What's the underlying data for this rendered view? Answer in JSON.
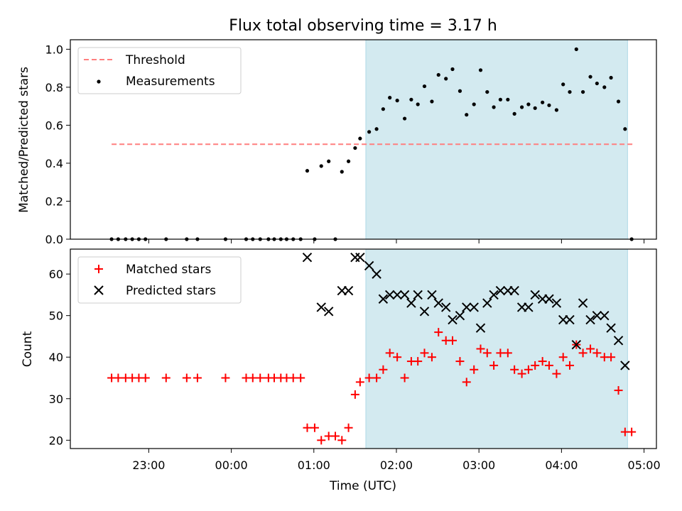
{
  "figure": {
    "title": "Flux total observing time = 3.17 h",
    "xlabel": "Time (UTC)",
    "x_ticks": [
      "23:00",
      "00:00",
      "01:00",
      "02:00",
      "03:00",
      "04:00",
      "05:00"
    ]
  },
  "chart_data": [
    {
      "type": "scatter",
      "ylabel": "Matched/Predicted stars",
      "ylim": [
        0,
        1.05
      ],
      "y_ticks": [
        "0.0",
        "0.2",
        "0.4",
        "0.6",
        "0.8",
        "1.0"
      ],
      "xlim_hours": [
        22.05,
        29.15
      ],
      "shaded_span_hours": [
        25.63,
        28.8
      ],
      "shaded_color": "#d3eaf0",
      "legend": {
        "position": "top-left",
        "entries": [
          "Threshold",
          "Measurements"
        ]
      },
      "series": [
        {
          "name": "Threshold",
          "kind": "dashed-line",
          "color": "#ff7f7f",
          "x_hours": [
            22.55,
            28.88
          ],
          "y": [
            0.5,
            0.5
          ]
        },
        {
          "name": "Measurements",
          "kind": "points",
          "color": "#000000",
          "x_hours": [
            22.55,
            22.63,
            22.72,
            22.8,
            22.88,
            22.96,
            23.21,
            23.46,
            23.59,
            23.93,
            24.18,
            24.26,
            24.35,
            24.45,
            24.52,
            24.6,
            24.67,
            24.75,
            24.84,
            24.92,
            25.01,
            25.09,
            25.18,
            25.26,
            25.34,
            25.42,
            25.5,
            25.56,
            25.67,
            25.76,
            25.84,
            25.92,
            26.01,
            26.1,
            26.18,
            26.26,
            26.34,
            26.43,
            26.51,
            26.6,
            26.68,
            26.77,
            26.85,
            26.94,
            27.02,
            27.1,
            27.18,
            27.26,
            27.35,
            27.43,
            27.52,
            27.6,
            27.68,
            27.77,
            27.85,
            27.94,
            28.02,
            28.1,
            28.18,
            28.26,
            28.35,
            28.43,
            28.52,
            28.6,
            28.69,
            28.77,
            28.85
          ],
          "y": [
            0,
            0,
            0,
            0,
            0,
            0,
            0,
            0,
            0,
            0,
            0,
            0,
            0,
            0,
            0,
            0,
            0,
            0,
            0,
            0.36,
            0,
            0.385,
            0.41,
            0,
            0.355,
            0.41,
            0.48,
            0.53,
            0.565,
            0.58,
            0.685,
            0.745,
            0.73,
            0.635,
            0.735,
            0.71,
            0.805,
            0.725,
            0.865,
            0.845,
            0.895,
            0.78,
            0.655,
            0.71,
            0.89,
            0.775,
            0.695,
            0.735,
            0.735,
            0.66,
            0.695,
            0.71,
            0.69,
            0.72,
            0.705,
            0.68,
            0.815,
            0.775,
            1.0,
            0.775,
            0.855,
            0.82,
            0.8,
            0.85,
            0.725,
            0.58,
            0
          ]
        }
      ]
    },
    {
      "type": "scatter",
      "ylabel": "Count",
      "ylim": [
        18,
        66
      ],
      "y_ticks": [
        "20",
        "30",
        "40",
        "50",
        "60"
      ],
      "xlim_hours": [
        22.05,
        29.15
      ],
      "shaded_span_hours": [
        25.63,
        28.8
      ],
      "shaded_color": "#d3eaf0",
      "legend": {
        "position": "top-left",
        "entries": [
          "Matched stars",
          "Predicted stars"
        ]
      },
      "series": [
        {
          "name": "Matched stars",
          "marker": "+",
          "color": "#ff0000",
          "x_hours": [
            22.55,
            22.63,
            22.72,
            22.8,
            22.88,
            22.96,
            23.21,
            23.46,
            23.59,
            23.93,
            24.18,
            24.26,
            24.35,
            24.45,
            24.52,
            24.6,
            24.67,
            24.75,
            24.84,
            24.92,
            25.01,
            25.09,
            25.18,
            25.26,
            25.34,
            25.42,
            25.5,
            25.56,
            25.67,
            25.76,
            25.84,
            25.92,
            26.01,
            26.1,
            26.18,
            26.26,
            26.34,
            26.43,
            26.51,
            26.6,
            26.68,
            26.77,
            26.85,
            26.94,
            27.02,
            27.1,
            27.18,
            27.26,
            27.35,
            27.43,
            27.52,
            27.6,
            27.68,
            27.77,
            27.85,
            27.94,
            28.02,
            28.1,
            28.18,
            28.26,
            28.35,
            28.43,
            28.52,
            28.6,
            28.69,
            28.77,
            28.85
          ],
          "y": [
            35,
            35,
            35,
            35,
            35,
            35,
            35,
            35,
            35,
            35,
            35,
            35,
            35,
            35,
            35,
            35,
            35,
            35,
            35,
            23,
            23,
            20,
            21,
            21,
            20,
            23,
            31,
            34,
            35,
            35,
            37,
            41,
            40,
            35,
            39,
            39,
            41,
            40,
            46,
            44,
            44,
            39,
            34,
            37,
            42,
            41,
            38,
            41,
            41,
            37,
            36,
            37,
            38,
            39,
            38,
            36,
            40,
            38,
            43,
            41,
            42,
            41,
            40,
            40,
            32,
            22,
            22
          ]
        },
        {
          "name": "Predicted stars",
          "marker": "x",
          "color": "#000000",
          "x_hours": [
            24.92,
            25.09,
            25.18,
            25.34,
            25.42,
            25.5,
            25.56,
            25.67,
            25.76,
            25.84,
            25.92,
            26.01,
            26.1,
            26.18,
            26.26,
            26.34,
            26.43,
            26.51,
            26.6,
            26.68,
            26.77,
            26.85,
            26.94,
            27.02,
            27.1,
            27.18,
            27.26,
            27.35,
            27.43,
            27.52,
            27.6,
            27.68,
            27.77,
            27.85,
            27.94,
            28.02,
            28.1,
            28.18,
            28.26,
            28.35,
            28.43,
            28.52,
            28.6,
            28.69,
            28.77
          ],
          "y": [
            64,
            52,
            51,
            56,
            56,
            64,
            64,
            62,
            60,
            54,
            55,
            55,
            55,
            53,
            55,
            51,
            55,
            53,
            52,
            49,
            50,
            52,
            52,
            47,
            53,
            55,
            56,
            56,
            56,
            52,
            52,
            55,
            54,
            54,
            53,
            49,
            49,
            43,
            53,
            49,
            50,
            50,
            47,
            44,
            38
          ]
        }
      ]
    }
  ]
}
